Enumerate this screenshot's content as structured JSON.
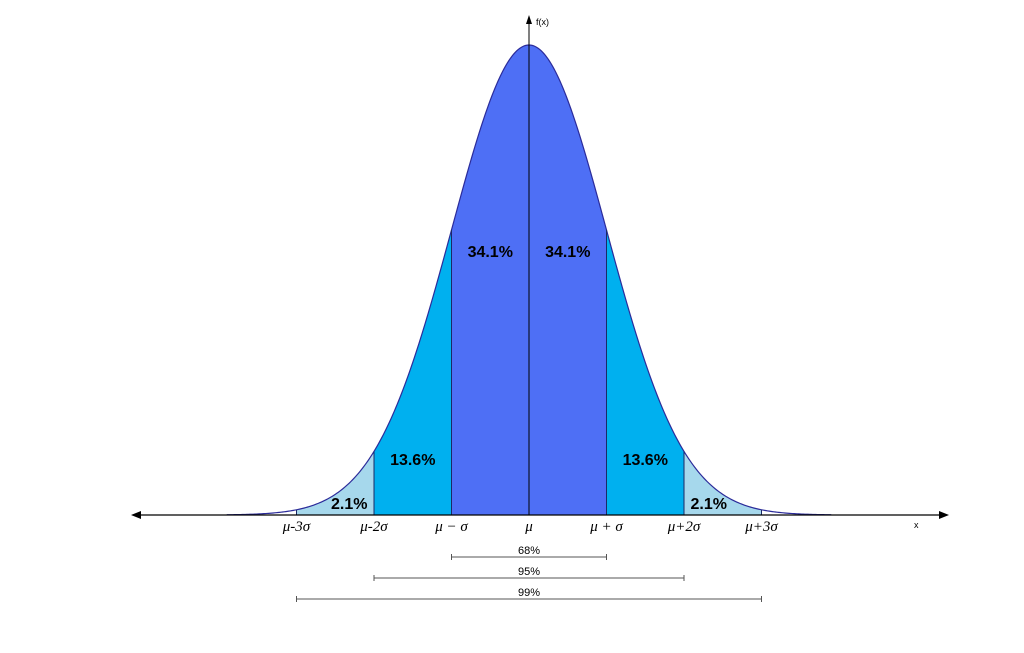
{
  "axes": {
    "y_label": "f(x)",
    "x_label": "x"
  },
  "regions": [
    {
      "from": -3,
      "to": -2,
      "label": "2.1%",
      "color": "#a6d8ec"
    },
    {
      "from": -2,
      "to": -1,
      "label": "13.6%",
      "color": "#00b0ef"
    },
    {
      "from": -1,
      "to": 0,
      "label": "34.1%",
      "color": "#4e6ff5"
    },
    {
      "from": 0,
      "to": 1,
      "label": "34.1%",
      "color": "#4e6ff5"
    },
    {
      "from": 1,
      "to": 2,
      "label": "13.6%",
      "color": "#00b0ef"
    },
    {
      "from": 2,
      "to": 3,
      "label": "2.1%",
      "color": "#a6d8ec"
    }
  ],
  "ticks": [
    {
      "sigma": -3,
      "label": "μ-3σ"
    },
    {
      "sigma": -2,
      "label": "μ-2σ"
    },
    {
      "sigma": -1,
      "label": "μ − σ"
    },
    {
      "sigma": 0,
      "label": "μ"
    },
    {
      "sigma": 1,
      "label": "μ + σ"
    },
    {
      "sigma": 2,
      "label": "μ+2σ"
    },
    {
      "sigma": 3,
      "label": "μ+3σ"
    }
  ],
  "ranges": [
    {
      "sigma": 1,
      "label": "68%"
    },
    {
      "sigma": 2,
      "label": "95%"
    },
    {
      "sigma": 3,
      "label": "99%"
    }
  ],
  "colors": {
    "curve_stroke": "#2b2b9a",
    "divider": "#1b2a66",
    "axis": "#000000"
  }
}
